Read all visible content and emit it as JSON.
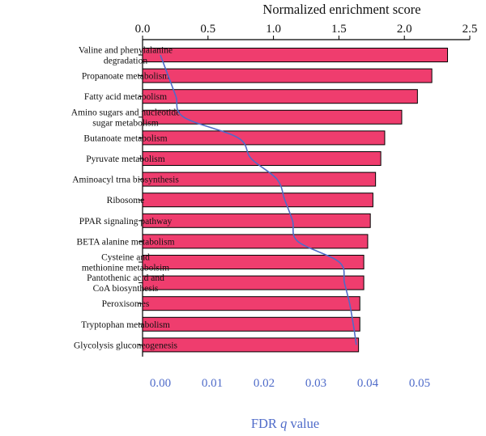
{
  "chart_data": {
    "type": "bar",
    "orientation": "horizontal",
    "categories": [
      [
        "Valine and phenylalanine",
        "degradation"
      ],
      [
        "Propanoate metabolism"
      ],
      [
        "Fatty acid metabolism"
      ],
      [
        "Amino sugars and nucleotide",
        "sugar metabolism"
      ],
      [
        "Butanoate metabolism"
      ],
      [
        "Pyruvate metabolism"
      ],
      [
        "Aminoacyl trna biosynthesis"
      ],
      [
        "Ribosome"
      ],
      [
        "PPAR signaling pathway"
      ],
      [
        "BETA alanine metabolism"
      ],
      [
        "Cysteine and",
        "methionine metabolsim"
      ],
      [
        "Pantothenic acid and",
        "CoA biosynthesis"
      ],
      [
        "Peroxisomes"
      ],
      [
        "Tryptophan metabolism"
      ],
      [
        "Glycolysis gluconeogenesis"
      ]
    ],
    "series": [
      {
        "type": "bar",
        "axis": "top",
        "values": [
          2.33,
          2.21,
          2.1,
          1.98,
          1.85,
          1.82,
          1.78,
          1.76,
          1.74,
          1.72,
          1.69,
          1.69,
          1.66,
          1.66,
          1.65
        ],
        "color": "#ef3d6e"
      },
      {
        "type": "line",
        "axis": "bottom",
        "values": [
          0.0,
          0.0015,
          0.003,
          0.0045,
          0.015,
          0.0175,
          0.0225,
          0.024,
          0.0255,
          0.0265,
          0.0345,
          0.0355,
          0.0365,
          0.0372,
          0.0378
        ],
        "color": "#4f6bc9"
      }
    ],
    "top_axis": {
      "label": "Normalized enrichment score",
      "range": [
        0,
        2.5
      ],
      "ticks": [
        "0.0",
        "0.5",
        "1.0",
        "1.5",
        "2.0",
        "2.5"
      ],
      "tick_values": [
        0,
        0.5,
        1.0,
        1.5,
        2.0,
        2.5
      ]
    },
    "bottom_axis": {
      "label_prefix": "FDR ",
      "label_italic": "q",
      "label_suffix": " value",
      "range": [
        -0.003,
        0.057
      ],
      "ticks": [
        "0.00",
        "0.01",
        "0.02",
        "0.03",
        "0.04",
        "0.05"
      ],
      "tick_values": [
        0.0,
        0.01,
        0.02,
        0.03,
        0.04,
        0.05
      ],
      "color": "#4f6bc9"
    },
    "grid": false
  }
}
